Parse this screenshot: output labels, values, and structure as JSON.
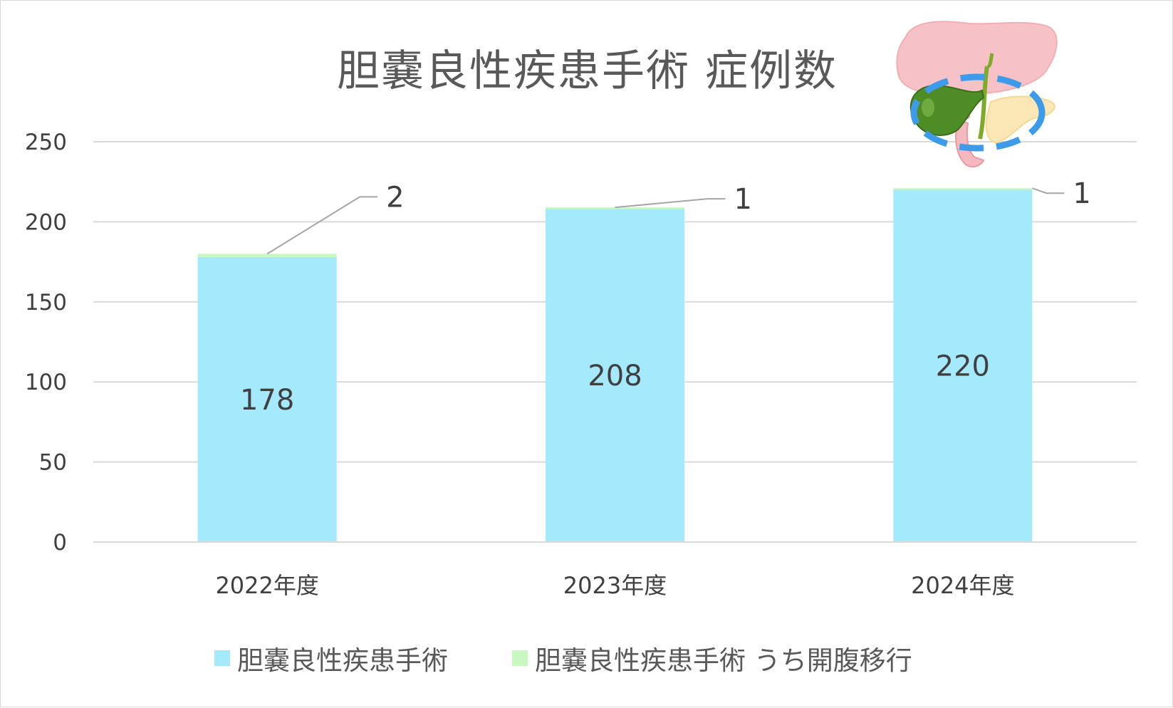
{
  "chart_data": {
    "type": "bar",
    "stacked": true,
    "title": "胆嚢良性疾患手術 症例数",
    "categories": [
      "2022年度",
      "2023年度",
      "2024年度"
    ],
    "series": [
      {
        "name": "胆嚢良性疾患手術",
        "values": [
          178,
          208,
          220
        ],
        "color": "#A5E9FC"
      },
      {
        "name": "胆嚢良性疾患手術 うち開腹移行",
        "values": [
          2,
          1,
          1
        ],
        "color": "#C9F7C0"
      }
    ],
    "ylim": [
      0,
      250
    ],
    "yticks": [
      "0",
      "50",
      "100",
      "150",
      "200",
      "250"
    ],
    "grid": true,
    "legend_position": "bottom",
    "bar_labels": [
      "178",
      "208",
      "220"
    ],
    "callout_labels": [
      "2",
      "1",
      "1"
    ]
  },
  "illustration": {
    "icon": "gallbladder-organ-illustration",
    "highlight_color": "#3D9BEA"
  }
}
